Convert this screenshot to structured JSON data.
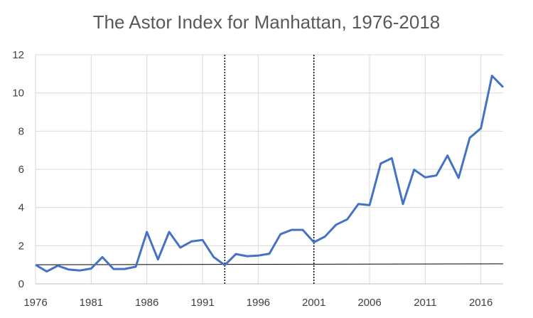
{
  "chart_data": {
    "type": "line",
    "title": "The Astor Index for Manhattan, 1976-2018",
    "xlabel": "",
    "ylabel": "",
    "xlim": [
      1976,
      2018
    ],
    "ylim": [
      0,
      12
    ],
    "x_ticks": [
      1976,
      1981,
      1986,
      1991,
      1996,
      2001,
      2006,
      2011,
      2016
    ],
    "y_ticks": [
      0,
      2,
      4,
      6,
      8,
      10,
      12
    ],
    "grid": true,
    "series": [
      {
        "x": [
          1976,
          1977,
          1978,
          1979,
          1980,
          1981,
          1982,
          1983,
          1984,
          1985,
          1986,
          1987,
          1988,
          1989,
          1990,
          1991,
          1992,
          1993,
          1994,
          1995,
          1996,
          1997,
          1998,
          1999,
          2000,
          2001,
          2002,
          2003,
          2004,
          2005,
          2006,
          2007,
          2008,
          2009,
          2010,
          2011,
          2012,
          2013,
          2014,
          2015,
          2016,
          2017,
          2018
        ],
        "values": [
          1.0,
          0.65,
          0.95,
          0.75,
          0.7,
          0.8,
          1.4,
          0.78,
          0.78,
          0.9,
          2.72,
          1.28,
          2.72,
          1.9,
          2.22,
          2.3,
          1.4,
          0.98,
          1.56,
          1.45,
          1.48,
          1.58,
          2.6,
          2.83,
          2.83,
          2.18,
          2.48,
          3.1,
          3.38,
          4.18,
          4.12,
          6.3,
          6.58,
          4.18,
          5.98,
          5.58,
          5.68,
          6.72,
          5.55,
          7.65,
          8.15,
          10.9,
          10.3
        ],
        "color": "#4472C4"
      }
    ],
    "reference_line": {
      "x": [
        1976,
        2018
      ],
      "values": [
        1.0,
        1.05
      ],
      "color": "#000000"
    },
    "vertical_lines": [
      1993,
      2001
    ],
    "vertical_line_style": "dotted",
    "gridline_color": "#d9d9d9",
    "axis_color": "#404040"
  }
}
